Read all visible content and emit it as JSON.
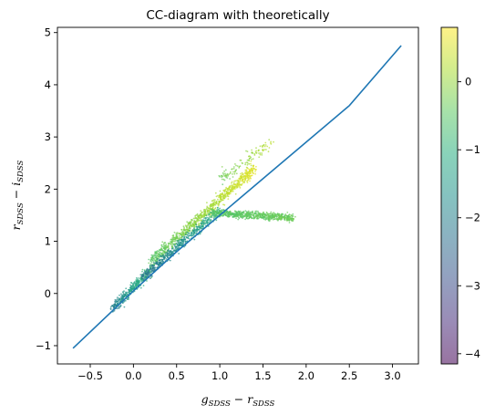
{
  "chart_data": {
    "type": "scatter",
    "title": "CC-diagram with theoretically",
    "xlabel": {
      "main": "g",
      "sub": "SDSS",
      "op": " − ",
      "main2": "r",
      "sub2": "SDSS"
    },
    "ylabel": {
      "main": "r",
      "sub": "SDSS",
      "op": " − ",
      "main2": "i",
      "sub2": "SDSS"
    },
    "xlim": [
      -0.88,
      3.3
    ],
    "ylim": [
      -1.35,
      5.1
    ],
    "xticks": [
      -0.5,
      0.0,
      0.5,
      1.0,
      1.5,
      2.0,
      2.5,
      3.0
    ],
    "xtick_labels": [
      "−0.5",
      "0.0",
      "0.5",
      "1.0",
      "1.5",
      "2.0",
      "2.5",
      "3.0"
    ],
    "yticks": [
      -1,
      0,
      1,
      2,
      3,
      4,
      5
    ],
    "ytick_labels": [
      "−1",
      "0",
      "1",
      "2",
      "3",
      "4",
      "5"
    ],
    "colorbar": {
      "range": [
        -4.15,
        0.8
      ],
      "ticks": [
        0,
        -1,
        -2,
        -3,
        -4
      ],
      "tick_labels": [
        "0",
        "−1",
        "−2",
        "−3",
        "−4"
      ],
      "colormap": "viridis",
      "alpha": 0.5
    },
    "line": {
      "color": "#1f77b4",
      "x": [
        -0.7,
        0.0,
        0.5,
        1.0,
        1.5,
        2.0,
        2.5,
        3.1
      ],
      "y": [
        -1.05,
        0.05,
        0.8,
        1.5,
        2.2,
        2.9,
        3.6,
        4.75
      ]
    },
    "scatter_regions": [
      {
        "x": [
          -0.25,
          0.2
        ],
        "y_center": [
          -0.3,
          0.45
        ],
        "spread": 0.1,
        "color_value": [
          -2.0,
          -0.7
        ],
        "density": 350
      },
      {
        "x": [
          0.2,
          1.4
        ],
        "y_center": [
          0.6,
          2.4
        ],
        "spread": 0.12,
        "color_value": [
          -0.5,
          0.6
        ],
        "density": 900
      },
      {
        "x": [
          0.1,
          1.0
        ],
        "y_center": [
          0.3,
          1.6
        ],
        "spread": 0.1,
        "color_value": [
          -2.2,
          -1.0
        ],
        "density": 500
      },
      {
        "x": [
          0.9,
          1.85
        ],
        "y_center": [
          1.55,
          1.45
        ],
        "spread": 0.07,
        "color_value": [
          -0.5,
          -0.3
        ],
        "density": 700
      },
      {
        "x": [
          1.0,
          1.6
        ],
        "y_center": [
          2.2,
          2.9
        ],
        "spread": 0.15,
        "color_value": [
          -0.3,
          0.3
        ],
        "density": 120
      }
    ]
  }
}
